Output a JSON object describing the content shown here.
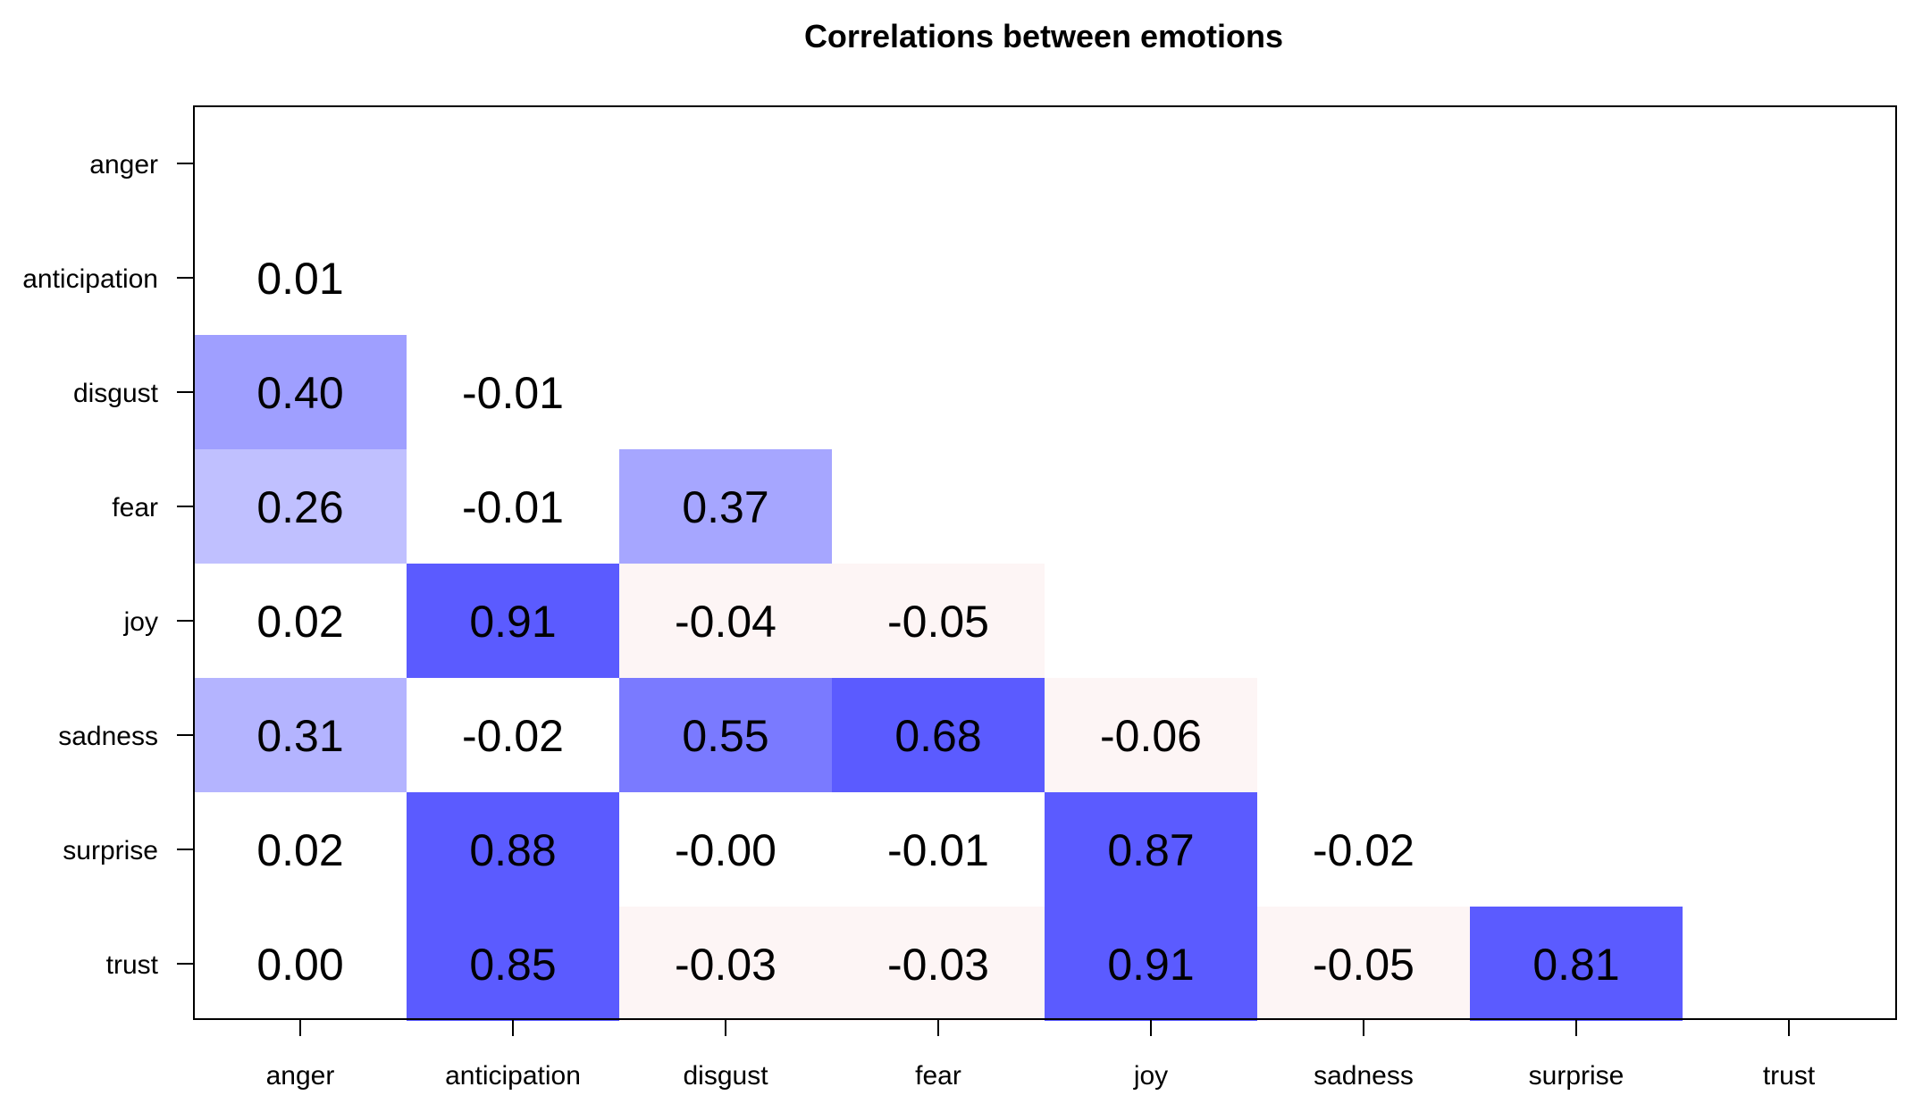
{
  "chart_data": {
    "type": "heatmap",
    "title": "Correlations between emotions",
    "xlabel": "",
    "ylabel": "",
    "categories": [
      "anger",
      "anticipation",
      "disgust",
      "fear",
      "joy",
      "sadness",
      "surprise",
      "trust"
    ],
    "matrix": [
      [
        null,
        null,
        null,
        null,
        null,
        null,
        null,
        null
      ],
      [
        0.01,
        null,
        null,
        null,
        null,
        null,
        null,
        null
      ],
      [
        0.4,
        -0.01,
        null,
        null,
        null,
        null,
        null,
        null
      ],
      [
        0.26,
        -0.01,
        0.37,
        null,
        null,
        null,
        null,
        null
      ],
      [
        0.02,
        0.91,
        -0.04,
        -0.05,
        null,
        null,
        null,
        null
      ],
      [
        0.31,
        -0.02,
        0.55,
        0.68,
        -0.06,
        null,
        null,
        null
      ],
      [
        0.02,
        0.88,
        -0.0,
        -0.01,
        0.87,
        -0.02,
        null,
        null
      ],
      [
        0.0,
        0.85,
        -0.03,
        -0.03,
        0.91,
        -0.05,
        0.81,
        null
      ]
    ],
    "value_labels": [
      [
        null,
        null,
        null,
        null,
        null,
        null,
        null,
        null
      ],
      [
        "0.01",
        null,
        null,
        null,
        null,
        null,
        null,
        null
      ],
      [
        "0.40",
        "-0.01",
        null,
        null,
        null,
        null,
        null,
        null
      ],
      [
        "0.26",
        "-0.01",
        "0.37",
        null,
        null,
        null,
        null,
        null
      ],
      [
        "0.02",
        "0.91",
        "-0.04",
        "-0.05",
        null,
        null,
        null,
        null
      ],
      [
        "0.31",
        "-0.02",
        "0.55",
        "0.68",
        "-0.06",
        null,
        null,
        null
      ],
      [
        "0.02",
        "0.88",
        "-0.00",
        "-0.01",
        "0.87",
        "-0.02",
        null,
        null
      ],
      [
        "0.00",
        "0.85",
        "-0.03",
        "-0.03",
        "0.91",
        "-0.05",
        "0.81",
        null
      ]
    ],
    "color_scale": {
      "positive_color": "#5b5bff",
      "negative_color": "#fdf5f5",
      "neutral_color": "#ffffff"
    },
    "grid": false,
    "legend": "none"
  }
}
